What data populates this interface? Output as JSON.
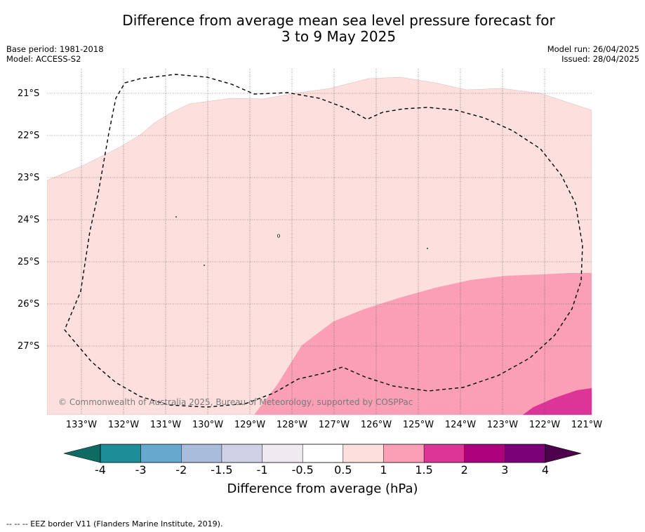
{
  "title_line1": "Difference from average mean sea level pressure forecast for",
  "title_line2": "3 to 9 May 2025",
  "base_period": "Base period: 1981-2018",
  "model": "Model: ACCESS-S2",
  "model_run": "Model run: 26/04/2025",
  "issued": "Issued: 28/04/2025",
  "copyright": "© Commonwealth of Australia 2025, Bureau of Meteorology, supported by COSPPac",
  "footnote": "--  --  -- EEZ border V11 (Flanders Marine Institute, 2019).",
  "colorbar_label": "Difference from average (hPa)",
  "lat_labels": [
    "21°S",
    "22°S",
    "23°S",
    "24°S",
    "25°S",
    "26°S",
    "27°S"
  ],
  "lon_labels": [
    "133°W",
    "132°W",
    "131°W",
    "130°W",
    "129°W",
    "128°W",
    "127°W",
    "126°W",
    "125°W",
    "124°W",
    "123°W",
    "122°W",
    "121°W"
  ],
  "colorbar_ticks": [
    "-4",
    "-3",
    "-2",
    "-1.5",
    "-1",
    "-0.5",
    "0.5",
    "1",
    "1.5",
    "2",
    "3",
    "4"
  ],
  "colorbar_colors": {
    "below_min": "#0d6b63",
    "bins": [
      "#1b8e98",
      "#67a8cf",
      "#a9bcdb",
      "#d0d1e6",
      "#efeaf0",
      "#ffffff",
      "#fde0dd",
      "#fa9fb5",
      "#dd3497",
      "#ae017e",
      "#7a0177"
    ],
    "above_max": "#4d004b"
  },
  "anomaly_colors": {
    "0.5_to_1": "#fde0dd",
    "1_to_1.5": "#fa9fb5",
    "1.5_to_2": "#dd3497"
  }
}
